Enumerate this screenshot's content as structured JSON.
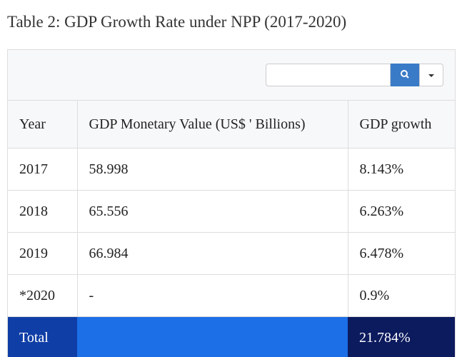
{
  "title": "Table 2: GDP Growth Rate under NPP (2017-2020)",
  "table": {
    "headers": [
      "Year",
      "GDP Monetary Value (US$ ' Billions)",
      "GDP growth"
    ],
    "rows": [
      [
        "2017",
        "58.998",
        "8.143%"
      ],
      [
        "2018",
        "65.556",
        "6.263%"
      ],
      [
        "2019",
        "66.984",
        "6.478%"
      ],
      [
        "*2020",
        "-",
        "0.9%"
      ]
    ],
    "total": [
      "Total",
      "21.784%"
    ]
  }
}
